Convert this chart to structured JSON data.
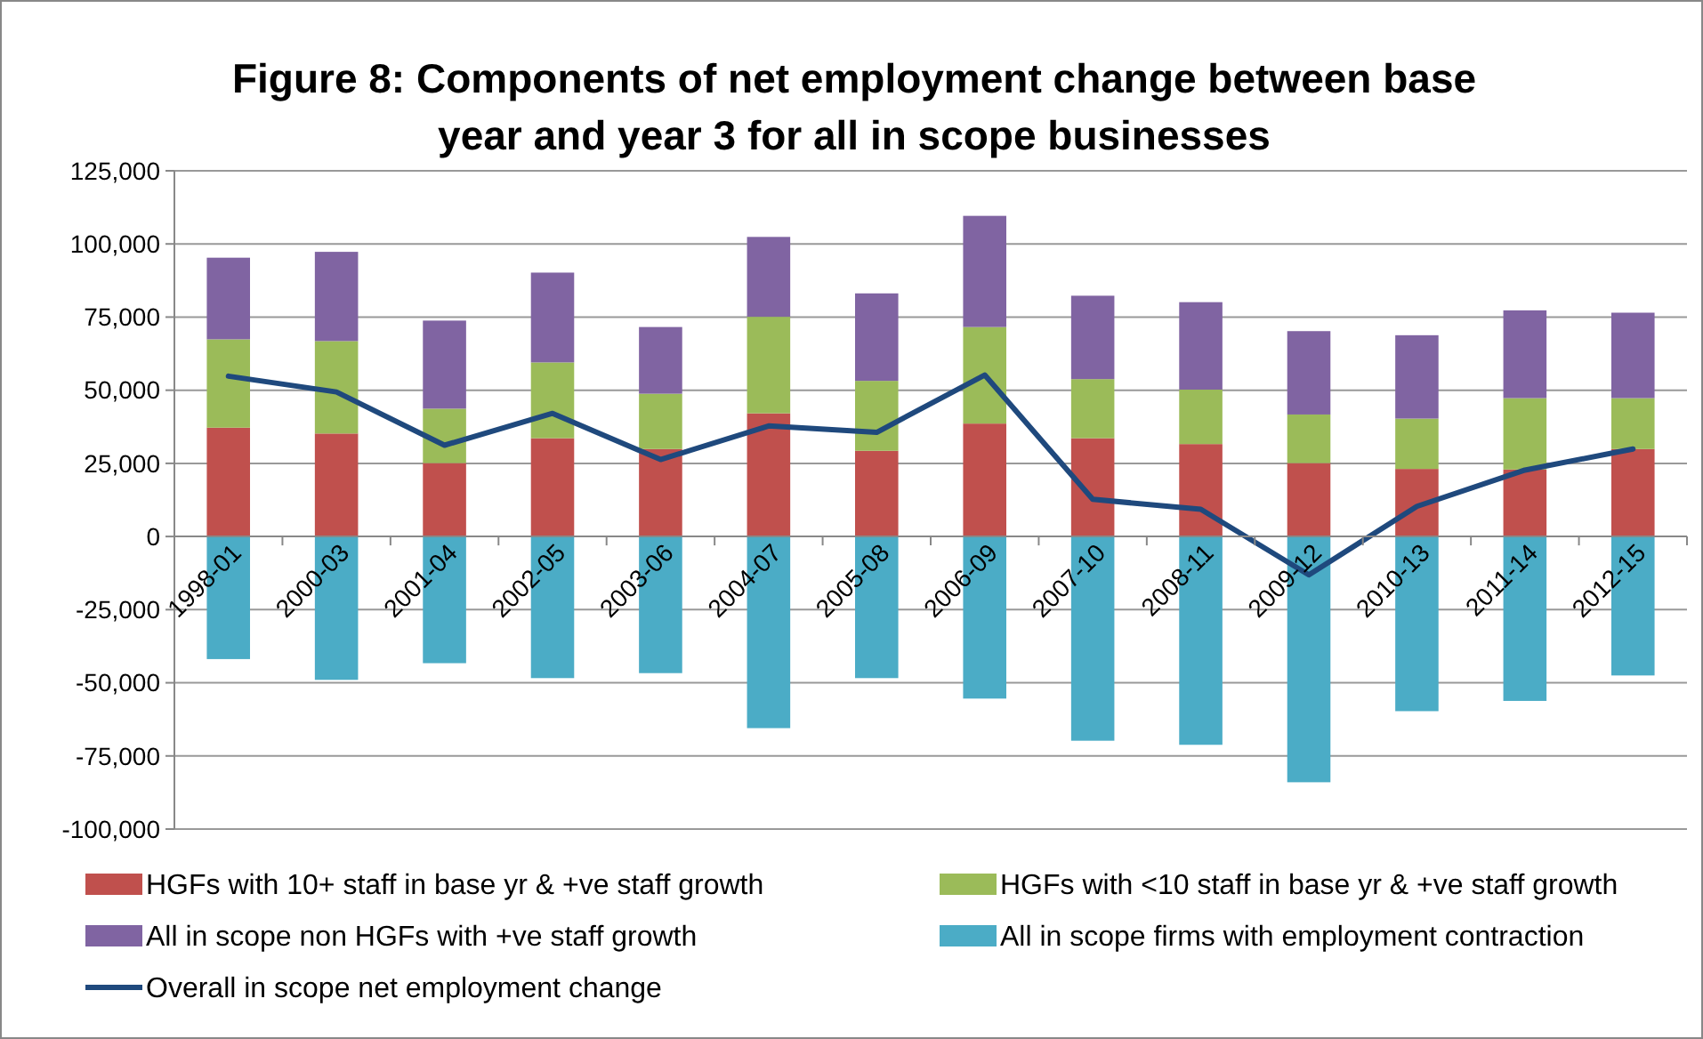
{
  "chart_data": {
    "type": "bar",
    "title": "Figure 8: Components of net employment change between base year and year 3 for all in scope businesses",
    "categories": [
      "1998-01",
      "2000-03",
      "2001-04",
      "2002-05",
      "2003-06",
      "2004-07",
      "2005-08",
      "2006-09",
      "2007-10",
      "2008-11",
      "2009-12",
      "2010-13",
      "2011-14",
      "2012-15"
    ],
    "stacked": true,
    "series": [
      {
        "name": "HGFs with 10+ staff in base yr & +ve staff growth",
        "color": "#c0504d",
        "values": [
          37200,
          35200,
          25100,
          33600,
          29900,
          42100,
          29300,
          38600,
          33600,
          31600,
          25100,
          23100,
          22900,
          29900
        ]
      },
      {
        "name": "HGFs with <10 staff in base yr & +ve staff growth",
        "color": "#9bbb59",
        "values": [
          30200,
          31600,
          18600,
          25900,
          18900,
          33000,
          23900,
          33000,
          20200,
          18600,
          16600,
          17200,
          24400,
          17400
        ]
      },
      {
        "name": "All in scope non HGFs with +ve staff growth",
        "color": "#8064a2",
        "values": [
          27900,
          30500,
          30100,
          30700,
          22800,
          27300,
          29900,
          38000,
          28500,
          29900,
          28500,
          28500,
          30000,
          29200
        ]
      },
      {
        "name": "All in scope firms with employment contraction",
        "color": "#4bacc6",
        "values": [
          -41900,
          -49000,
          -43300,
          -48400,
          -46700,
          -65500,
          -48400,
          -55400,
          -69800,
          -71200,
          -84000,
          -59700,
          -56200,
          -47500
        ]
      },
      {
        "name": "Overall in scope net employment change",
        "type": "line",
        "color": "#1f497d",
        "values": [
          54800,
          49400,
          31200,
          42100,
          26300,
          37800,
          35600,
          55200,
          12700,
          9300,
          -13100,
          10300,
          22700,
          29900
        ]
      }
    ],
    "ylim": [
      -100000,
      125000
    ],
    "yticks": [
      {
        "value": -100000,
        "label": "-100,000"
      },
      {
        "value": -75000,
        "label": "-75,000"
      },
      {
        "value": -50000,
        "label": "-50,000"
      },
      {
        "value": -25000,
        "label": "-25,000"
      },
      0,
      {
        "value": 25000,
        "label": "25,000"
      },
      {
        "value": 50000,
        "label": "50,000"
      },
      {
        "value": 75000,
        "label": "75,000"
      },
      {
        "value": 100000,
        "label": "100,000"
      },
      {
        "value": 125000,
        "label": "125,000"
      }
    ],
    "grid": "y",
    "legend": "bottom",
    "marker": "none"
  }
}
